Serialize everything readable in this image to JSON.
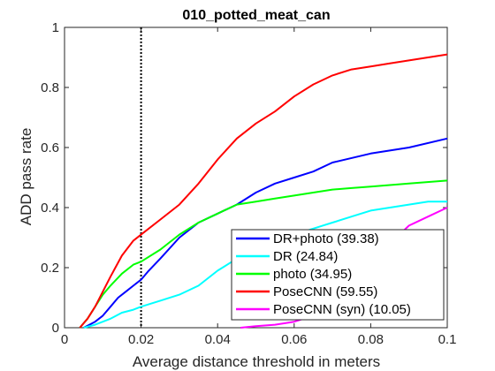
{
  "chart_data": {
    "type": "line",
    "title": "010_potted_meat_can",
    "xlabel": "Average distance threshold in meters",
    "ylabel": "ADD pass rate",
    "xlim": [
      0,
      0.1
    ],
    "ylim": [
      0,
      1
    ],
    "xticks": [
      "0",
      "0.02",
      "0.04",
      "0.06",
      "0.08",
      "0.1"
    ],
    "yticks": [
      "0",
      "0.2",
      "0.4",
      "0.6",
      "0.8",
      "1"
    ],
    "grid": false,
    "legend_position": "bottom-right",
    "vline": {
      "x": 0.02,
      "style": "dotted",
      "color": "#000000"
    },
    "series": [
      {
        "name": "DR+photo (39.38)",
        "color": "#0000ff",
        "x": [
          0.005,
          0.008,
          0.01,
          0.012,
          0.014,
          0.016,
          0.018,
          0.02,
          0.022,
          0.025,
          0.03,
          0.035,
          0.04,
          0.045,
          0.05,
          0.055,
          0.06,
          0.065,
          0.07,
          0.08,
          0.09,
          0.1
        ],
        "y": [
          0.0,
          0.02,
          0.04,
          0.07,
          0.1,
          0.12,
          0.14,
          0.16,
          0.19,
          0.23,
          0.3,
          0.35,
          0.38,
          0.41,
          0.45,
          0.48,
          0.5,
          0.52,
          0.55,
          0.58,
          0.6,
          0.63
        ]
      },
      {
        "name": "DR (24.84)",
        "color": "#00ffff",
        "x": [
          0.005,
          0.008,
          0.01,
          0.012,
          0.015,
          0.018,
          0.02,
          0.025,
          0.03,
          0.035,
          0.04,
          0.045,
          0.05,
          0.055,
          0.06,
          0.065,
          0.07,
          0.075,
          0.08,
          0.085,
          0.09,
          0.095,
          0.1
        ],
        "y": [
          0.0,
          0.01,
          0.02,
          0.03,
          0.05,
          0.06,
          0.07,
          0.09,
          0.11,
          0.14,
          0.19,
          0.23,
          0.26,
          0.29,
          0.31,
          0.33,
          0.35,
          0.37,
          0.39,
          0.4,
          0.41,
          0.42,
          0.42
        ]
      },
      {
        "name": "photo (34.95)",
        "color": "#00ff00",
        "x": [
          0.004,
          0.006,
          0.008,
          0.01,
          0.012,
          0.015,
          0.018,
          0.02,
          0.025,
          0.03,
          0.035,
          0.04,
          0.045,
          0.05,
          0.055,
          0.06,
          0.065,
          0.07,
          0.075,
          0.08,
          0.09,
          0.1
        ],
        "y": [
          0.0,
          0.03,
          0.07,
          0.11,
          0.14,
          0.18,
          0.21,
          0.22,
          0.26,
          0.31,
          0.35,
          0.38,
          0.41,
          0.42,
          0.43,
          0.44,
          0.45,
          0.46,
          0.465,
          0.47,
          0.48,
          0.49
        ]
      },
      {
        "name": "PoseCNN (59.55)",
        "color": "#ff0000",
        "x": [
          0.004,
          0.006,
          0.008,
          0.01,
          0.012,
          0.015,
          0.018,
          0.02,
          0.025,
          0.03,
          0.035,
          0.04,
          0.045,
          0.05,
          0.055,
          0.06,
          0.065,
          0.07,
          0.075,
          0.08,
          0.085,
          0.09,
          0.095,
          0.1
        ],
        "y": [
          0.0,
          0.03,
          0.07,
          0.12,
          0.17,
          0.24,
          0.29,
          0.31,
          0.36,
          0.41,
          0.48,
          0.56,
          0.63,
          0.68,
          0.72,
          0.77,
          0.81,
          0.84,
          0.86,
          0.87,
          0.88,
          0.89,
          0.9,
          0.91
        ]
      },
      {
        "name": "PoseCNN (syn) (10.05)",
        "color": "#ff00ff",
        "x": [
          0.046,
          0.05,
          0.055,
          0.06,
          0.065,
          0.07,
          0.075,
          0.08,
          0.085,
          0.09,
          0.095,
          0.1
        ],
        "y": [
          0.0,
          0.005,
          0.01,
          0.02,
          0.04,
          0.07,
          0.12,
          0.2,
          0.28,
          0.34,
          0.37,
          0.4
        ]
      }
    ]
  }
}
